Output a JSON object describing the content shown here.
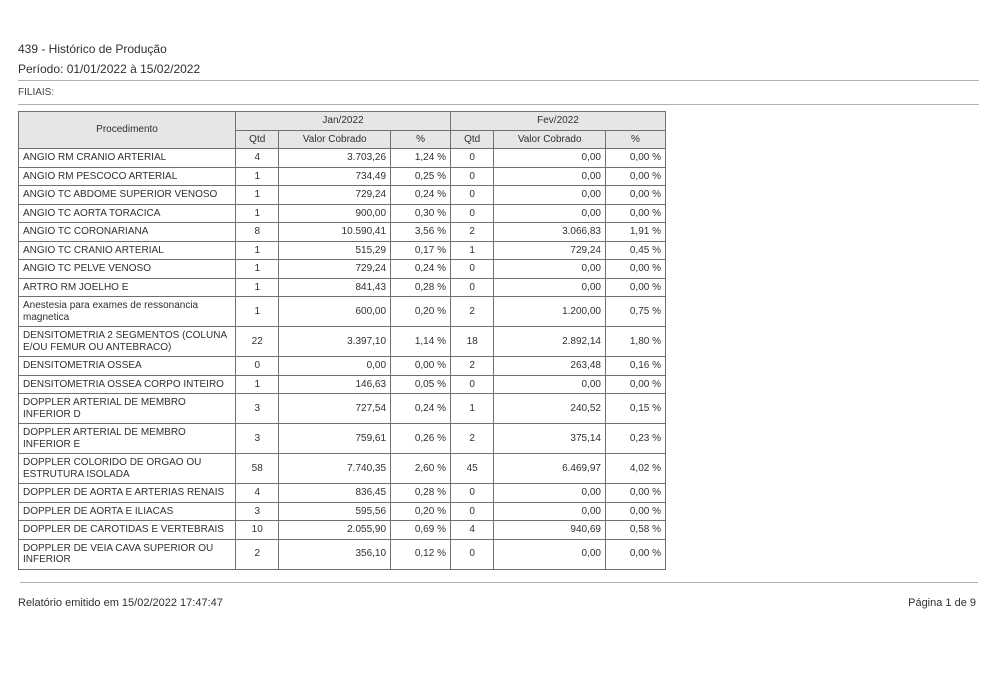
{
  "header": {
    "report_title": "439 - Histórico de Produção",
    "period_label": "Período: 01/01/2022 à 15/02/2022",
    "filiais_label": "FILIAIS:"
  },
  "table": {
    "col_procedure": "Procedimento",
    "group1": "Jan/2022",
    "group2": "Fev/2022",
    "sub_qtd": "Qtd",
    "sub_valor": "Valor Cobrado",
    "sub_pct": "%",
    "rows": [
      {
        "proc": "ANGIO RM CRANIO ARTERIAL",
        "q1": "4",
        "v1": "3.703,26",
        "p1": "1,24 %",
        "q2": "0",
        "v2": "0,00",
        "p2": "0,00 %"
      },
      {
        "proc": "ANGIO RM PESCOCO ARTERIAL",
        "q1": "1",
        "v1": "734,49",
        "p1": "0,25 %",
        "q2": "0",
        "v2": "0,00",
        "p2": "0,00 %"
      },
      {
        "proc": "ANGIO TC ABDOME SUPERIOR VENOSO",
        "q1": "1",
        "v1": "729,24",
        "p1": "0,24 %",
        "q2": "0",
        "v2": "0,00",
        "p2": "0,00 %"
      },
      {
        "proc": "ANGIO TC AORTA TORACICA",
        "q1": "1",
        "v1": "900,00",
        "p1": "0,30 %",
        "q2": "0",
        "v2": "0,00",
        "p2": "0,00 %"
      },
      {
        "proc": "ANGIO TC CORONARIANA",
        "q1": "8",
        "v1": "10.590,41",
        "p1": "3,56 %",
        "q2": "2",
        "v2": "3.066,83",
        "p2": "1,91 %"
      },
      {
        "proc": "ANGIO TC CRANIO ARTERIAL",
        "q1": "1",
        "v1": "515,29",
        "p1": "0,17 %",
        "q2": "1",
        "v2": "729,24",
        "p2": "0,45 %"
      },
      {
        "proc": "ANGIO TC PELVE VENOSO",
        "q1": "1",
        "v1": "729,24",
        "p1": "0,24 %",
        "q2": "0",
        "v2": "0,00",
        "p2": "0,00 %"
      },
      {
        "proc": "ARTRO RM JOELHO E",
        "q1": "1",
        "v1": "841,43",
        "p1": "0,28 %",
        "q2": "0",
        "v2": "0,00",
        "p2": "0,00 %"
      },
      {
        "proc": "Anestesia para exames de ressonancia magnetica",
        "q1": "1",
        "v1": "600,00",
        "p1": "0,20 %",
        "q2": "2",
        "v2": "1.200,00",
        "p2": "0,75 %"
      },
      {
        "proc": "DENSITOMETRIA 2 SEGMENTOS (COLUNA E/OU FEMUR OU ANTEBRACO)",
        "q1": "22",
        "v1": "3.397,10",
        "p1": "1,14 %",
        "q2": "18",
        "v2": "2.892,14",
        "p2": "1,80 %"
      },
      {
        "proc": "DENSITOMETRIA OSSEA",
        "q1": "0",
        "v1": "0,00",
        "p1": "0,00 %",
        "q2": "2",
        "v2": "263,48",
        "p2": "0,16 %"
      },
      {
        "proc": "DENSITOMETRIA OSSEA CORPO INTEIRO",
        "q1": "1",
        "v1": "146,63",
        "p1": "0,05 %",
        "q2": "0",
        "v2": "0,00",
        "p2": "0,00 %"
      },
      {
        "proc": "DOPPLER ARTERIAL DE MEMBRO INFERIOR D",
        "q1": "3",
        "v1": "727,54",
        "p1": "0,24 %",
        "q2": "1",
        "v2": "240,52",
        "p2": "0,15 %"
      },
      {
        "proc": "DOPPLER ARTERIAL DE MEMBRO INFERIOR E",
        "q1": "3",
        "v1": "759,61",
        "p1": "0,26 %",
        "q2": "2",
        "v2": "375,14",
        "p2": "0,23 %"
      },
      {
        "proc": "DOPPLER COLORIDO DE ORGAO OU ESTRUTURA ISOLADA",
        "q1": "58",
        "v1": "7.740,35",
        "p1": "2,60 %",
        "q2": "45",
        "v2": "6.469,97",
        "p2": "4,02 %"
      },
      {
        "proc": "DOPPLER DE AORTA E ARTERIAS RENAIS",
        "q1": "4",
        "v1": "836,45",
        "p1": "0,28 %",
        "q2": "0",
        "v2": "0,00",
        "p2": "0,00 %"
      },
      {
        "proc": "DOPPLER DE AORTA E ILIACAS",
        "q1": "3",
        "v1": "595,56",
        "p1": "0,20 %",
        "q2": "0",
        "v2": "0,00",
        "p2": "0,00 %"
      },
      {
        "proc": "DOPPLER DE CAROTIDAS E VERTEBRAIS",
        "q1": "10",
        "v1": "2.055,90",
        "p1": "0,69 %",
        "q2": "4",
        "v2": "940,69",
        "p2": "0,58 %"
      },
      {
        "proc": "DOPPLER DE VEIA CAVA SUPERIOR OU INFERIOR",
        "q1": "2",
        "v1": "356,10",
        "p1": "0,12 %",
        "q2": "0",
        "v2": "0,00",
        "p2": "0,00 %"
      }
    ]
  },
  "footer": {
    "emitted": "Relatório emitido em 15/02/2022 17:47:47",
    "page": "Página 1 de 9"
  }
}
